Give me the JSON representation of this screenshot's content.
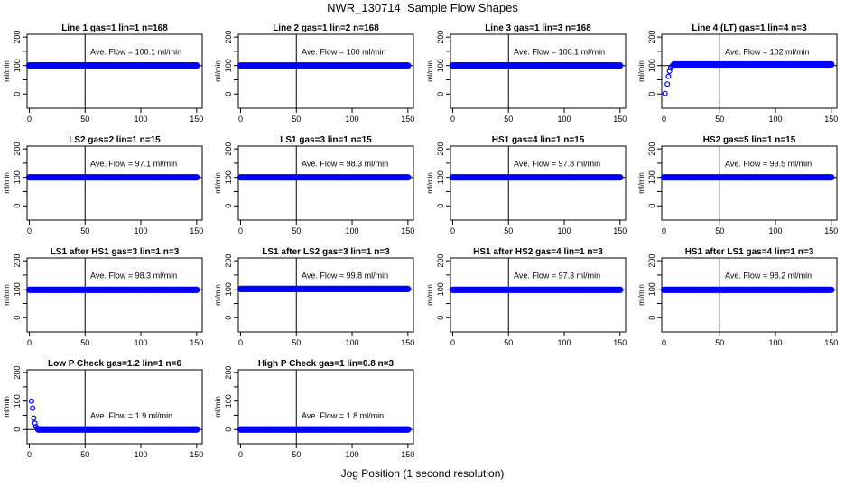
{
  "figure": {
    "title": "NWR_130714  Sample Flow Shapes",
    "xlabel": "Jog Position (1 second resolution)"
  },
  "chart_data": [
    {
      "type": "scatter",
      "title": "Line 1 gas=1 lin=1 n=168",
      "ylabel": "ml/min",
      "annotation": "Ave. Flow =  100.1  ml/min",
      "xlim": [
        -2,
        155
      ],
      "ylim": [
        -50,
        210
      ],
      "xticks": [
        0,
        50,
        100,
        150
      ],
      "yticks": [
        0,
        100,
        200
      ],
      "vline": 50,
      "hline": 100,
      "curve": {
        "kind": "flat",
        "level": 100.1,
        "x_start": 0,
        "x_end": 150
      }
    },
    {
      "type": "scatter",
      "title": "Line 2 gas=1 lin=2 n=168",
      "ylabel": "ml/min",
      "annotation": "Ave. Flow =  100  ml/min",
      "xlim": [
        -2,
        155
      ],
      "ylim": [
        -50,
        210
      ],
      "xticks": [
        0,
        50,
        100,
        150
      ],
      "yticks": [
        0,
        100,
        200
      ],
      "vline": 50,
      "hline": 100,
      "curve": {
        "kind": "flat",
        "level": 100,
        "x_start": 0,
        "x_end": 150
      }
    },
    {
      "type": "scatter",
      "title": "Line 3 gas=1 lin=3 n=168",
      "ylabel": "ml/min",
      "annotation": "Ave. Flow =  100.1  ml/min",
      "xlim": [
        -2,
        155
      ],
      "ylim": [
        -50,
        210
      ],
      "xticks": [
        0,
        50,
        100,
        150
      ],
      "yticks": [
        0,
        100,
        200
      ],
      "vline": 50,
      "hline": 100,
      "curve": {
        "kind": "flat",
        "level": 100.1,
        "x_start": 0,
        "x_end": 150
      }
    },
    {
      "type": "scatter",
      "title": "Line 4 (LT) gas=1 lin=4 n=3",
      "ylabel": "ml/min",
      "annotation": "Ave. Flow =  102  ml/min",
      "xlim": [
        -2,
        155
      ],
      "ylim": [
        -50,
        210
      ],
      "xticks": [
        0,
        50,
        100,
        150
      ],
      "yticks": [
        0,
        100,
        200
      ],
      "vline": 50,
      "hline": 100,
      "curve": {
        "kind": "flat",
        "level": 104,
        "x_start": 9,
        "x_end": 150
      },
      "lead_points": [
        [
          1,
          2
        ],
        [
          3,
          35
        ],
        [
          4,
          62
        ],
        [
          5,
          80
        ],
        [
          6,
          92
        ],
        [
          7,
          98
        ],
        [
          8,
          101
        ]
      ]
    },
    {
      "type": "scatter",
      "title": "LS2 gas=2 lin=1 n=15",
      "ylabel": "ml/min",
      "annotation": "Ave. Flow =  97.1  ml/min",
      "xlim": [
        -2,
        155
      ],
      "ylim": [
        -50,
        210
      ],
      "xticks": [
        0,
        50,
        100,
        150
      ],
      "yticks": [
        0,
        100,
        200
      ],
      "vline": 50,
      "hline": 100,
      "curve": {
        "kind": "flat",
        "level": 100,
        "x_start": 0,
        "x_end": 150
      }
    },
    {
      "type": "scatter",
      "title": "LS1 gas=3 lin=1 n=15",
      "ylabel": "ml/min",
      "annotation": "Ave. Flow =  98.3  ml/min",
      "xlim": [
        -2,
        155
      ],
      "ylim": [
        -50,
        210
      ],
      "xticks": [
        0,
        50,
        100,
        150
      ],
      "yticks": [
        0,
        100,
        200
      ],
      "vline": 50,
      "hline": 100,
      "curve": {
        "kind": "flat",
        "level": 100,
        "x_start": 0,
        "x_end": 150
      }
    },
    {
      "type": "scatter",
      "title": "HS1 gas=4 lin=1 n=15",
      "ylabel": "ml/min",
      "annotation": "Ave. Flow =  97.8  ml/min",
      "xlim": [
        -2,
        155
      ],
      "ylim": [
        -50,
        210
      ],
      "xticks": [
        0,
        50,
        100,
        150
      ],
      "yticks": [
        0,
        100,
        200
      ],
      "vline": 50,
      "hline": 100,
      "curve": {
        "kind": "flat",
        "level": 100,
        "x_start": 0,
        "x_end": 150
      }
    },
    {
      "type": "scatter",
      "title": "HS2 gas=5 lin=1 n=15",
      "ylabel": "ml/min",
      "annotation": "Ave. Flow =  99.5  ml/min",
      "xlim": [
        -2,
        155
      ],
      "ylim": [
        -50,
        210
      ],
      "xticks": [
        0,
        50,
        100,
        150
      ],
      "yticks": [
        0,
        100,
        200
      ],
      "vline": 50,
      "hline": 100,
      "curve": {
        "kind": "flat",
        "level": 100,
        "x_start": 0,
        "x_end": 150
      }
    },
    {
      "type": "scatter",
      "title": "LS1 after HS1 gas=3 lin=1 n=3",
      "ylabel": "ml/min",
      "annotation": "Ave. Flow =  98.3  ml/min",
      "xlim": [
        -2,
        155
      ],
      "ylim": [
        -50,
        210
      ],
      "xticks": [
        0,
        50,
        100,
        150
      ],
      "yticks": [
        0,
        100,
        200
      ],
      "vline": 50,
      "hline": 100,
      "curve": {
        "kind": "flat",
        "level": 98,
        "x_start": 0,
        "x_end": 150
      }
    },
    {
      "type": "scatter",
      "title": "LS1 after LS2 gas=3 lin=1 n=3",
      "ylabel": "ml/min",
      "annotation": "Ave. Flow =  99.8  ml/min",
      "xlim": [
        -2,
        155
      ],
      "ylim": [
        -50,
        210
      ],
      "xticks": [
        0,
        50,
        100,
        150
      ],
      "yticks": [
        0,
        100,
        200
      ],
      "vline": 50,
      "hline": 100,
      "curve": {
        "kind": "flat",
        "level": 101,
        "x_start": 0,
        "x_end": 150
      }
    },
    {
      "type": "scatter",
      "title": "HS1 after HS2 gas=4 lin=1 n=3",
      "ylabel": "ml/min",
      "annotation": "Ave. Flow =  97.3  ml/min",
      "xlim": [
        -2,
        155
      ],
      "ylim": [
        -50,
        210
      ],
      "xticks": [
        0,
        50,
        100,
        150
      ],
      "yticks": [
        0,
        100,
        200
      ],
      "vline": 50,
      "hline": 100,
      "curve": {
        "kind": "flat",
        "level": 98,
        "x_start": 0,
        "x_end": 150
      }
    },
    {
      "type": "scatter",
      "title": "HS1 after LS1 gas=4 lin=1 n=3",
      "ylabel": "ml/min",
      "annotation": "Ave. Flow =  98.2  ml/min",
      "xlim": [
        -2,
        155
      ],
      "ylim": [
        -50,
        210
      ],
      "xticks": [
        0,
        50,
        100,
        150
      ],
      "yticks": [
        0,
        100,
        200
      ],
      "vline": 50,
      "hline": 100,
      "curve": {
        "kind": "flat",
        "level": 98,
        "x_start": 0,
        "x_end": 150
      }
    },
    {
      "type": "scatter",
      "title": "Low P Check gas=1.2 lin=1 n=6",
      "ylabel": "ml/min",
      "annotation": "Ave. Flow =  1.9  ml/min",
      "xlim": [
        -2,
        155
      ],
      "ylim": [
        -50,
        210
      ],
      "xticks": [
        0,
        50,
        100,
        150
      ],
      "yticks": [
        0,
        100,
        200
      ],
      "vline": 50,
      "hline": 0,
      "curve": {
        "kind": "flat",
        "level": 0,
        "x_start": 8,
        "x_end": 150
      },
      "lead_points": [
        [
          2,
          100
        ],
        [
          3,
          75
        ],
        [
          4,
          40
        ],
        [
          5,
          22
        ],
        [
          6,
          10
        ],
        [
          7,
          4
        ]
      ]
    },
    {
      "type": "scatter",
      "title": "High P Check gas=1 lin=0.8 n=3",
      "ylabel": "ml/min",
      "annotation": "Ave. Flow =  1.8  ml/min",
      "xlim": [
        -2,
        155
      ],
      "ylim": [
        -50,
        210
      ],
      "xticks": [
        0,
        50,
        100,
        150
      ],
      "yticks": [
        0,
        100,
        200
      ],
      "vline": 50,
      "hline": 0,
      "curve": {
        "kind": "flat",
        "level": 0,
        "x_start": 0,
        "x_end": 150
      }
    }
  ],
  "colors": {
    "points": "#0000ff",
    "axes": "#000000"
  }
}
